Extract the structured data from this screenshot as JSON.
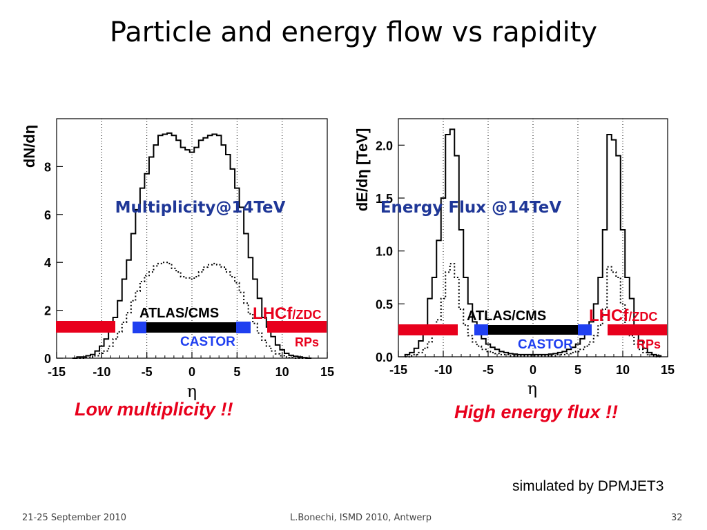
{
  "slide": {
    "title": "Particle and energy flow vs rapidity",
    "caption_left": "Low multiplicity !!",
    "caption_right": "High energy flux !!",
    "note": "simulated by DPMJET3",
    "footer_left": "21-25 September 2010",
    "footer_center": "L.Bonechi, ISMD 2010, Antwerp",
    "footer_right": "32"
  },
  "detectors": {
    "atlas_cms": "ATLAS/CMS",
    "castor": "CASTOR",
    "lhcf": "LHCf",
    "zdc": "/ZDC",
    "rps": "RPs",
    "colors": {
      "central": "#000000",
      "castor": "#1f3ff0",
      "forward": "#e8001c"
    }
  },
  "chart_data": [
    {
      "type": "line",
      "title": "Multiplicity@14TeV",
      "xlabel": "η",
      "ylabel": "dN/dη",
      "xlim": [
        -15,
        15
      ],
      "ylim": [
        0,
        10
      ],
      "x_ticks": [
        -15,
        -10,
        -5,
        0,
        5,
        10,
        15
      ],
      "x_tick_labels": [
        "-15",
        "-10",
        "-5",
        "0",
        "5",
        "10",
        "15"
      ],
      "y_ticks": [
        0,
        2,
        4,
        6,
        8
      ],
      "y_tick_labels": [
        "0",
        "2",
        "4",
        "6",
        "8"
      ],
      "grid_x": [
        -10,
        -5,
        0,
        5,
        10
      ],
      "series": [
        {
          "style": "solid",
          "x": [
            -13,
            -12.5,
            -12,
            -11.5,
            -11,
            -10.5,
            -10,
            -9.5,
            -9,
            -8.5,
            -8,
            -7.5,
            -7,
            -6.5,
            -6,
            -5.5,
            -5,
            -4.5,
            -4,
            -3.5,
            -3,
            -2.5,
            -2,
            -1.5,
            -1,
            -0.5,
            0,
            0.5,
            1,
            1.5,
            2,
            2.5,
            3,
            3.5,
            4,
            4.5,
            5,
            5.5,
            6,
            6.5,
            7,
            7.5,
            8,
            8.5,
            9,
            9.5,
            10,
            10.5,
            11,
            11.5,
            12,
            12.5,
            13
          ],
          "y": [
            0,
            0.05,
            0.05,
            0.1,
            0.15,
            0.3,
            0.5,
            0.8,
            1.2,
            1.7,
            2.4,
            3.3,
            4.1,
            5.2,
            6.2,
            7.1,
            7.7,
            8.4,
            8.9,
            9.3,
            9.35,
            9.4,
            9.3,
            9.1,
            8.8,
            8.7,
            8.6,
            8.8,
            9.1,
            9.2,
            9.3,
            9.35,
            9.3,
            8.9,
            8.5,
            7.9,
            7.1,
            6.3,
            5.2,
            4.2,
            3.3,
            2.5,
            1.7,
            1.3,
            0.9,
            0.55,
            0.35,
            0.2,
            0.12,
            0.08,
            0.05,
            0.02,
            0
          ]
        },
        {
          "style": "dotted",
          "x": [
            -13,
            -12.5,
            -12,
            -11.5,
            -11,
            -10.5,
            -10,
            -9.5,
            -9,
            -8.5,
            -8,
            -7.5,
            -7,
            -6.5,
            -6,
            -5.5,
            -5,
            -4.5,
            -4,
            -3.5,
            -3,
            -2.5,
            -2,
            -1.5,
            -1,
            -0.5,
            0,
            0.5,
            1,
            1.5,
            2,
            2.5,
            3,
            3.5,
            4,
            4.5,
            5,
            5.5,
            6,
            6.5,
            7,
            7.5,
            8,
            8.5,
            9,
            9.5,
            10,
            10.5,
            11,
            11.5,
            12,
            12.5,
            13
          ],
          "y": [
            0,
            0,
            0,
            0.02,
            0.05,
            0.1,
            0.2,
            0.3,
            0.5,
            0.8,
            1.1,
            1.5,
            1.9,
            2.4,
            2.8,
            3.2,
            3.45,
            3.6,
            3.85,
            3.95,
            4.0,
            3.95,
            3.75,
            3.6,
            3.4,
            3.35,
            3.3,
            3.4,
            3.6,
            3.8,
            3.9,
            3.95,
            3.9,
            3.8,
            3.6,
            3.4,
            3.15,
            2.75,
            2.3,
            1.85,
            1.45,
            1.05,
            0.75,
            0.5,
            0.3,
            0.18,
            0.1,
            0.05,
            0.02,
            0,
            0,
            0,
            0
          ]
        }
      ]
    },
    {
      "type": "line",
      "title": "Energy Flux @14TeV",
      "xlabel": "η",
      "ylabel": "dE/dη [TeV]",
      "xlim": [
        -15,
        15
      ],
      "ylim": [
        0,
        2.25
      ],
      "x_ticks": [
        -15,
        -10,
        -5,
        0,
        5,
        10,
        15
      ],
      "x_tick_labels": [
        "-15",
        "-10",
        "-5",
        "0",
        "5",
        "10",
        "15"
      ],
      "y_ticks": [
        0,
        0.5,
        1.0,
        1.5,
        2.0
      ],
      "y_tick_labels": [
        "0.0",
        "0.5",
        "1.0",
        "1.5",
        "2.0"
      ],
      "grid_x": [
        -10,
        -5,
        0,
        5,
        10
      ],
      "series": [
        {
          "style": "solid",
          "x": [
            -14,
            -13.5,
            -13,
            -12.5,
            -12,
            -11.5,
            -11,
            -10.5,
            -10,
            -9.5,
            -9,
            -8.5,
            -8,
            -7.5,
            -7,
            -6.5,
            -6,
            -5.5,
            -5,
            -4.5,
            -4,
            -3.5,
            -3,
            -2.5,
            -2,
            -1.5,
            -1,
            -0.5,
            0,
            0.5,
            1,
            1.5,
            2,
            2.5,
            3,
            3.5,
            4,
            4.5,
            5,
            5.5,
            6,
            6.5,
            7,
            7.5,
            8,
            8.5,
            9,
            9.5,
            10,
            10.5,
            11,
            11.5,
            12,
            12.5,
            13,
            13.5,
            14
          ],
          "y": [
            0.02,
            0.04,
            0.08,
            0.15,
            0.3,
            0.55,
            0.75,
            1.1,
            1.5,
            2.1,
            2.15,
            1.9,
            1.2,
            0.75,
            0.5,
            0.33,
            0.24,
            0.17,
            0.12,
            0.09,
            0.07,
            0.05,
            0.04,
            0.03,
            0.025,
            0.02,
            0.02,
            0.02,
            0.02,
            0.02,
            0.02,
            0.02,
            0.025,
            0.03,
            0.04,
            0.05,
            0.07,
            0.09,
            0.12,
            0.17,
            0.24,
            0.33,
            0.5,
            0.75,
            1.2,
            2.1,
            2.05,
            1.9,
            1.2,
            0.75,
            0.55,
            0.3,
            0.15,
            0.08,
            0.04,
            0.02,
            0.01
          ]
        },
        {
          "style": "dotted",
          "x": [
            -14,
            -13.5,
            -13,
            -12.5,
            -12,
            -11.5,
            -11,
            -10.5,
            -10,
            -9.5,
            -9,
            -8.5,
            -8,
            -7.5,
            -7,
            -6.5,
            -6,
            -5.5,
            -5,
            -4.5,
            -4,
            -3.5,
            -3,
            -2.5,
            -2,
            -1.5,
            -1,
            -0.5,
            0,
            0.5,
            1,
            1.5,
            2,
            2.5,
            3,
            3.5,
            4,
            4.5,
            5,
            5.5,
            6,
            6.5,
            7,
            7.5,
            8,
            8.5,
            9,
            9.5,
            10,
            10.5,
            11,
            11.5,
            12,
            12.5,
            13,
            13.5,
            14
          ],
          "y": [
            0,
            0.01,
            0.02,
            0.04,
            0.08,
            0.14,
            0.22,
            0.35,
            0.55,
            0.8,
            0.88,
            0.75,
            0.45,
            0.3,
            0.2,
            0.14,
            0.1,
            0.07,
            0.05,
            0.04,
            0.03,
            0.02,
            0.02,
            0.01,
            0.01,
            0.01,
            0.01,
            0.01,
            0.01,
            0.01,
            0.01,
            0.01,
            0.01,
            0.01,
            0.02,
            0.02,
            0.03,
            0.04,
            0.05,
            0.07,
            0.1,
            0.14,
            0.2,
            0.3,
            0.45,
            0.85,
            0.8,
            0.75,
            0.5,
            0.3,
            0.2,
            0.12,
            0.07,
            0.04,
            0.02,
            0.01,
            0
          ]
        }
      ]
    }
  ]
}
